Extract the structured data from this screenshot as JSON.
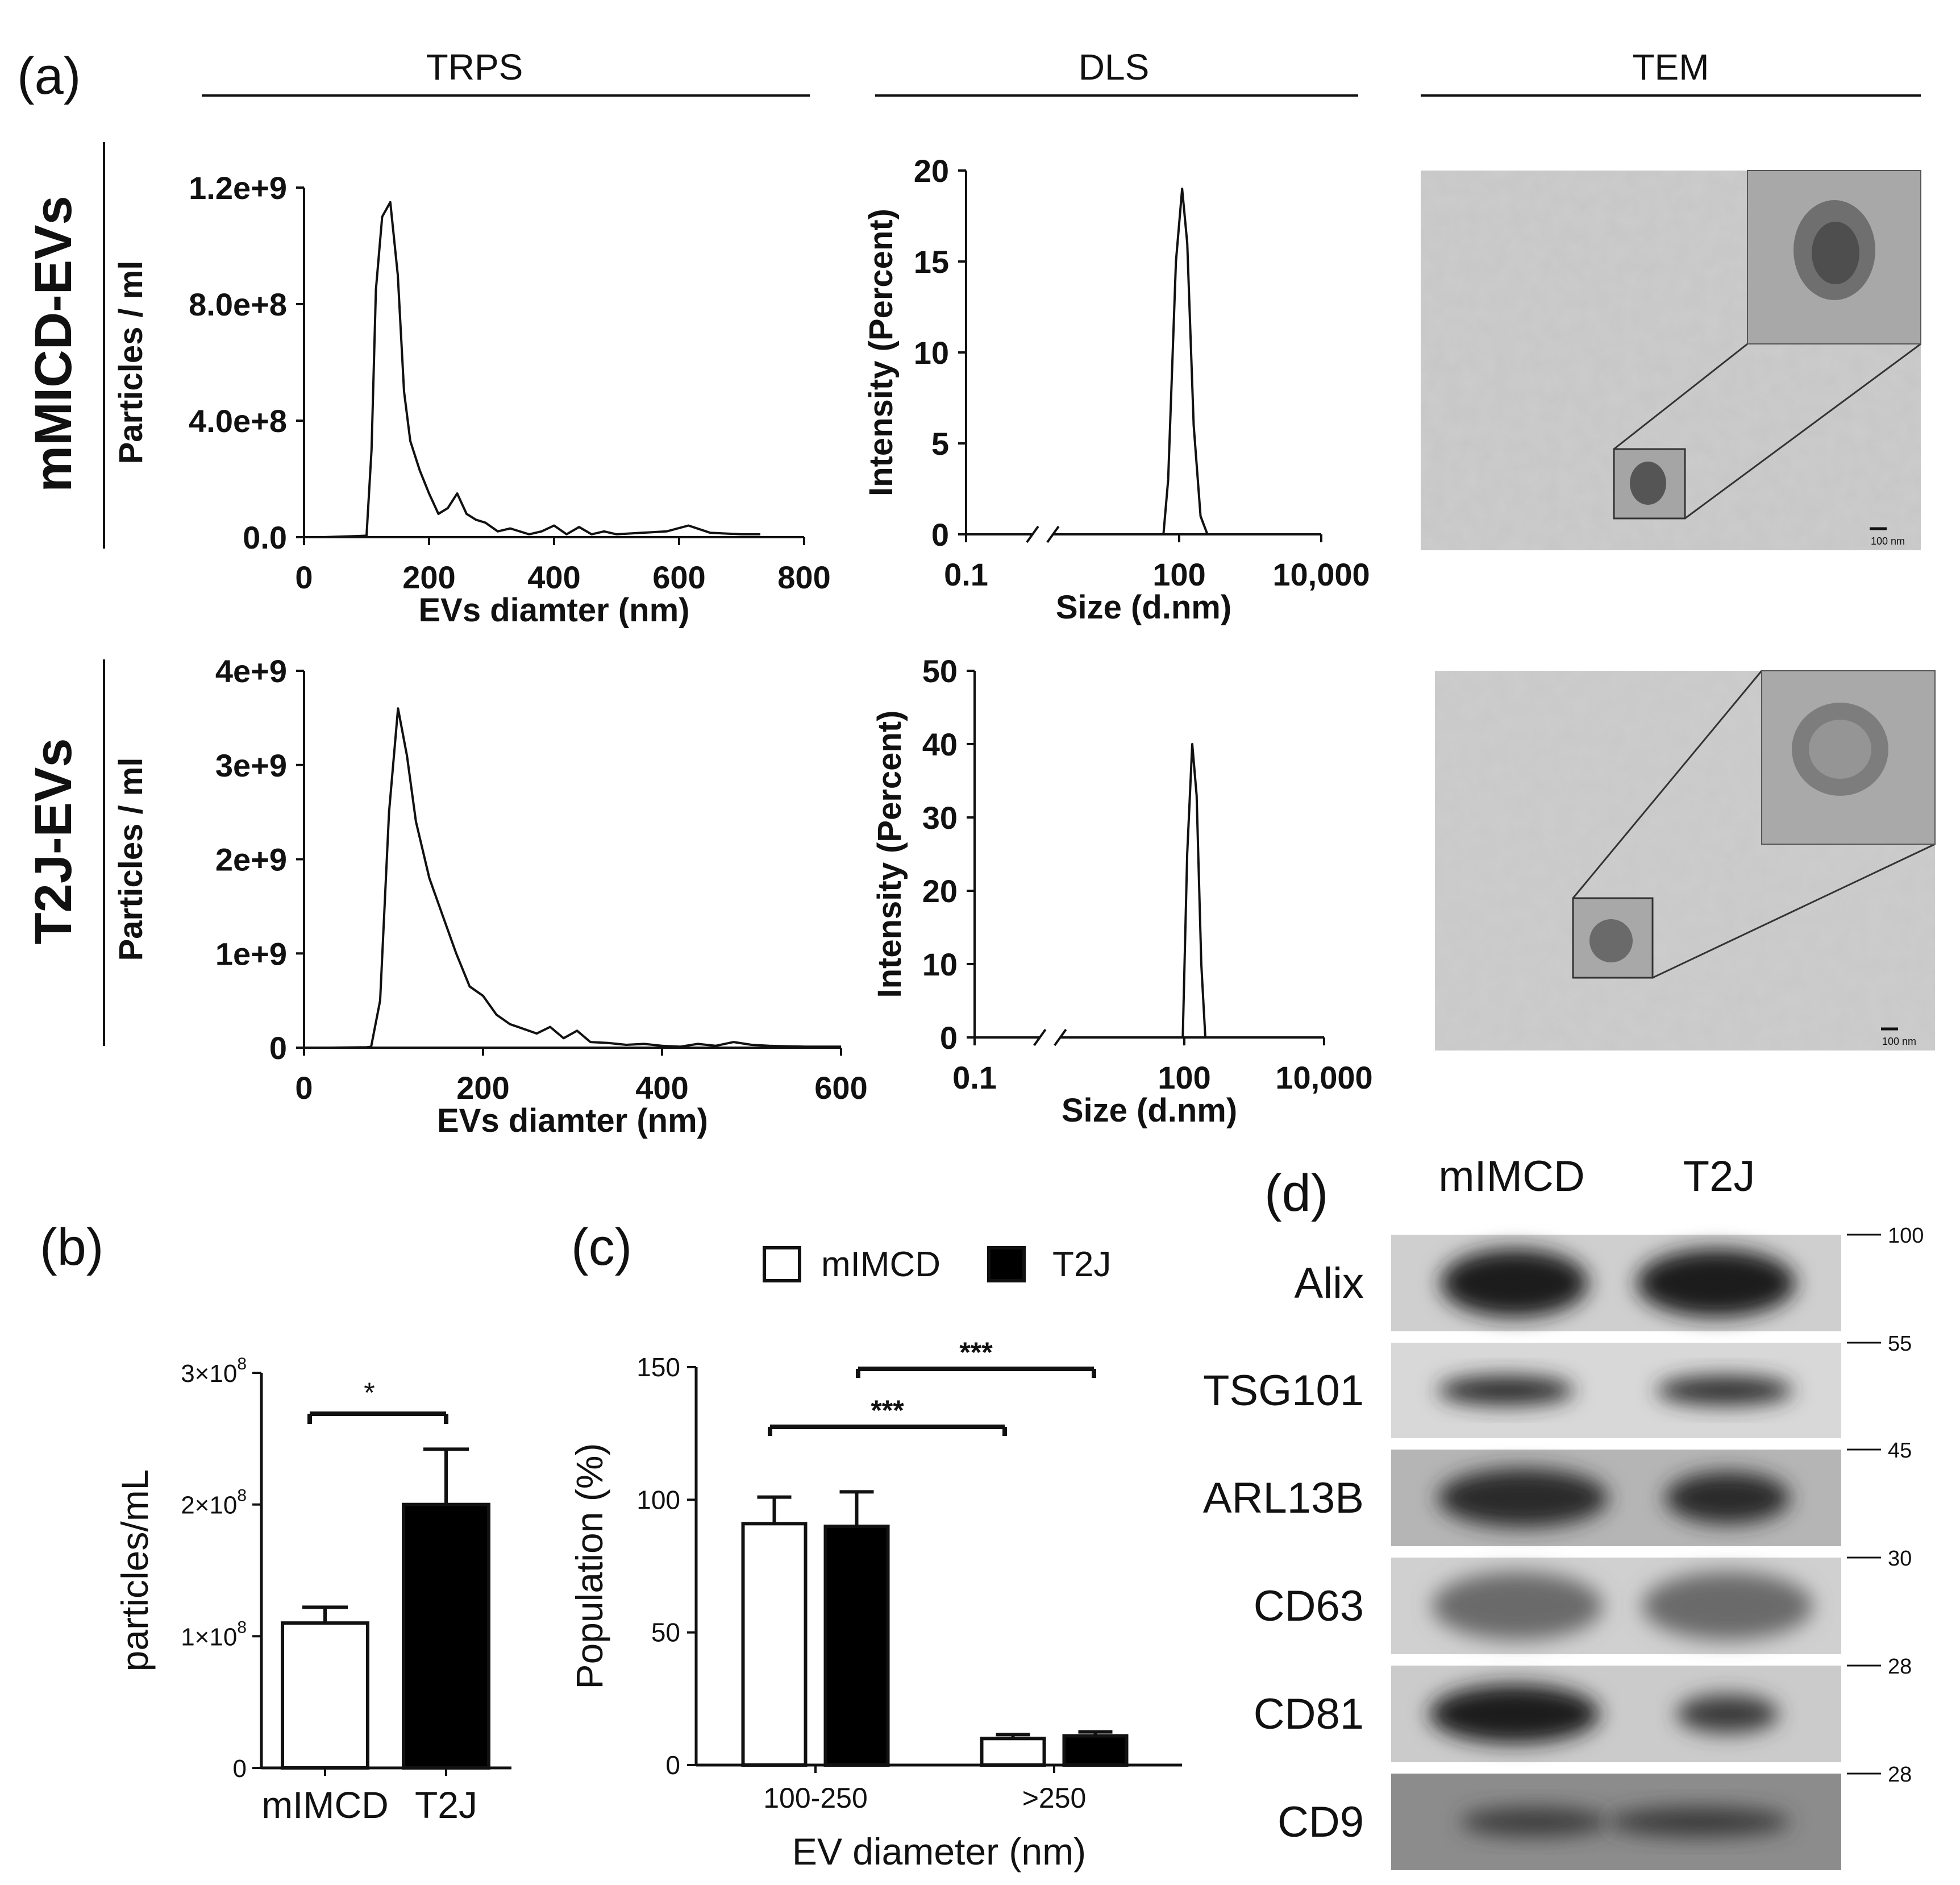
{
  "panel_letters": {
    "a": "(a)",
    "b": "(b)",
    "c": "(c)",
    "d": "(d)"
  },
  "column_headers": [
    "TRPS",
    "DLS",
    "TEM"
  ],
  "row_labels": [
    "mMICD-EVs",
    "T2J-EVs"
  ],
  "tem_scale_label": "100 nm",
  "chart_data": [
    {
      "id": "trps-mimcd",
      "type": "line",
      "xlabel": "EVs diamter (nm)",
      "ylabel": "Particles / ml",
      "xlim": [
        0,
        800
      ],
      "ylim": [
        0,
        1200000000
      ],
      "xticks": [
        "0",
        "200",
        "400",
        "600",
        "800"
      ],
      "yticks": [
        "0.0",
        "4.0e+8",
        "8.0e+8",
        "1.2e+9"
      ],
      "x": [
        30,
        100,
        108,
        115,
        125,
        138,
        150,
        160,
        170,
        185,
        200,
        215,
        230,
        245,
        260,
        275,
        290,
        310,
        330,
        360,
        380,
        400,
        420,
        440,
        460,
        480,
        500,
        540,
        580,
        615,
        650,
        700,
        730
      ],
      "y": [
        0,
        5000000,
        300000000,
        850000000,
        1100000000,
        1150000000,
        900000000,
        500000000,
        330000000,
        230000000,
        150000000,
        80000000,
        100000000,
        150000000,
        80000000,
        60000000,
        50000000,
        20000000,
        30000000,
        10000000,
        20000000,
        40000000,
        10000000,
        35000000,
        10000000,
        20000000,
        10000000,
        15000000,
        20000000,
        40000000,
        15000000,
        10000000,
        10000000
      ]
    },
    {
      "id": "dls-mimcd",
      "type": "line",
      "xlabel": "Size (d.nm)",
      "ylabel": "Intensity (Percent)",
      "xscale": "log",
      "xlim": [
        0.1,
        10000
      ],
      "ylim": [
        0,
        20
      ],
      "xticks": [
        "0.1",
        "100",
        "10,000"
      ],
      "yticks": [
        "0",
        "5",
        "10",
        "15",
        "20"
      ],
      "x": [
        60,
        70,
        90,
        110,
        130,
        160,
        200,
        250
      ],
      "y": [
        0,
        3,
        15,
        19,
        16,
        6,
        1,
        0
      ]
    },
    {
      "id": "trps-t2j",
      "type": "line",
      "xlabel": "EVs diamter (nm)",
      "ylabel": "Particles / ml",
      "xlim": [
        0,
        600
      ],
      "ylim": [
        0,
        4000000000
      ],
      "xticks": [
        "0",
        "200",
        "400",
        "600"
      ],
      "yticks": [
        "0",
        "1e+9",
        "2e+9",
        "3e+9",
        "4e+9"
      ],
      "x": [
        30,
        70,
        75,
        85,
        95,
        105,
        115,
        125,
        140,
        155,
        170,
        185,
        200,
        215,
        230,
        245,
        260,
        275,
        290,
        305,
        320,
        340,
        360,
        380,
        400,
        420,
        440,
        460,
        480,
        500,
        520,
        560,
        600
      ],
      "y": [
        0,
        5000000,
        10000000,
        500000000,
        2500000000,
        3600000000,
        3100000000,
        2400000000,
        1800000000,
        1400000000,
        1000000000,
        650000000,
        550000000,
        350000000,
        250000000,
        200000000,
        150000000,
        220000000,
        100000000,
        180000000,
        60000000,
        50000000,
        30000000,
        40000000,
        20000000,
        10000000,
        40000000,
        20000000,
        60000000,
        30000000,
        20000000,
        10000000,
        10000000
      ]
    },
    {
      "id": "dls-t2j",
      "type": "line",
      "xlabel": "Size (d.nm)",
      "ylabel": "Intensity (Percent)",
      "xscale": "log",
      "xlim": [
        0.1,
        10000
      ],
      "ylim": [
        0,
        50
      ],
      "xticks": [
        "0.1",
        "100",
        "10,000"
      ],
      "yticks": [
        "0",
        "10",
        "20",
        "30",
        "40",
        "50"
      ],
      "x": [
        95,
        110,
        130,
        150,
        175,
        200
      ],
      "y": [
        0,
        25,
        40,
        33,
        10,
        0
      ]
    },
    {
      "id": "b",
      "type": "bar",
      "categories": [
        "mIMCD",
        "T2J"
      ],
      "values": [
        110000000,
        200000000
      ],
      "errors": [
        12000000,
        42000000
      ],
      "colors": [
        "#ffffff",
        "#000000"
      ],
      "ylabel": "particles/mL",
      "ylim": [
        0,
        300000000
      ],
      "yticks": [
        "0",
        "1×10^8",
        "2×10^8",
        "3×10^8"
      ],
      "significance": "*"
    },
    {
      "id": "c",
      "type": "bar",
      "categories": [
        "100-250",
        ">250"
      ],
      "series": [
        {
          "name": "mIMCD",
          "values": [
            91,
            10
          ],
          "errors": [
            10,
            1.5
          ],
          "color": "#ffffff"
        },
        {
          "name": "T2J",
          "values": [
            90,
            11
          ],
          "errors": [
            13,
            1.5
          ],
          "color": "#000000"
        }
      ],
      "xlabel": "EV diameter (nm)",
      "ylabel": "Population (%)",
      "ylim": [
        0,
        150
      ],
      "yticks": [
        "0",
        "50",
        "100",
        "150"
      ],
      "legend": "top",
      "significance": [
        "***",
        "***"
      ]
    }
  ],
  "western_blot": {
    "lanes": [
      "mIMCD",
      "T2J"
    ],
    "rows": [
      {
        "label": "Alix",
        "marker": "100"
      },
      {
        "label": "TSG101",
        "marker": "55"
      },
      {
        "label": "ARL13B",
        "marker": "45"
      },
      {
        "label": "CD63",
        "marker": "30"
      },
      {
        "label": "CD81",
        "marker": "28"
      },
      {
        "label": "CD9",
        "marker": "28"
      }
    ]
  }
}
